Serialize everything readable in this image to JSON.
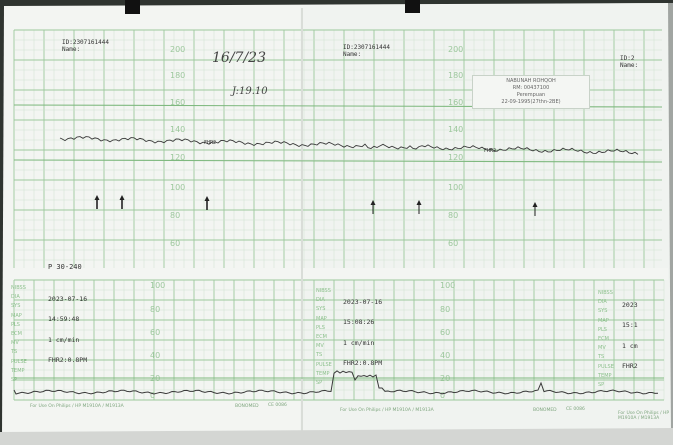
{
  "top_panel": {
    "left_header": {
      "id": "ID:2307161444",
      "name": "Name:"
    },
    "right_header": {
      "id": "ID:2307161444",
      "name": "Name:"
    },
    "far_right_header": {
      "id": "ID:2",
      "name": "Name:"
    },
    "scale_labels": [
      "200",
      "180",
      "160",
      "140",
      "120",
      "100",
      "80",
      "60"
    ],
    "trace_labels": [
      "FHR2",
      "FHR2"
    ],
    "bottom_left": "P 30-240",
    "handwriting": {
      "date": "16/7/23",
      "time": "J:19.10"
    },
    "note": {
      "line1": "NABUNAH ROHQOH",
      "line2": "RM: 00437100",
      "line3": "Perempuan",
      "line4": "22-09-1995(27thn-2BE)"
    }
  },
  "bottom_panel": {
    "left_block": {
      "date": "2023-07-16",
      "time": "14:59:48",
      "speed": "1 cm/min",
      "fhr": "FHR2:0.8PM"
    },
    "right_block": {
      "date": "2023-07-16",
      "time": "15:08:26",
      "speed": "1 cm/min",
      "fhr": "FHR2:0.8PM"
    },
    "far_right_block": {
      "date": "2023",
      "time": "15:1",
      "speed": "1 cm",
      "fhr": "FHR2"
    },
    "scale_labels": [
      "100",
      "80",
      "60",
      "40",
      "20",
      "0"
    ],
    "side_labels": [
      "NIBSS",
      "DIA",
      "SYS",
      "MAP",
      "PLS",
      "ECM",
      "MV",
      "TS",
      "PULSE",
      "TEMP",
      "SP"
    ],
    "footer": {
      "brand": "For Use On Philips / HP M1910A / M1913A",
      "logo": "BONOMED",
      "ce": "CE 0086"
    }
  },
  "colors": {
    "paper": "#f3f5f2",
    "grid_minor": "#cfe3cf",
    "grid_major": "#9cc99c",
    "trace": "#3a3a3a"
  }
}
